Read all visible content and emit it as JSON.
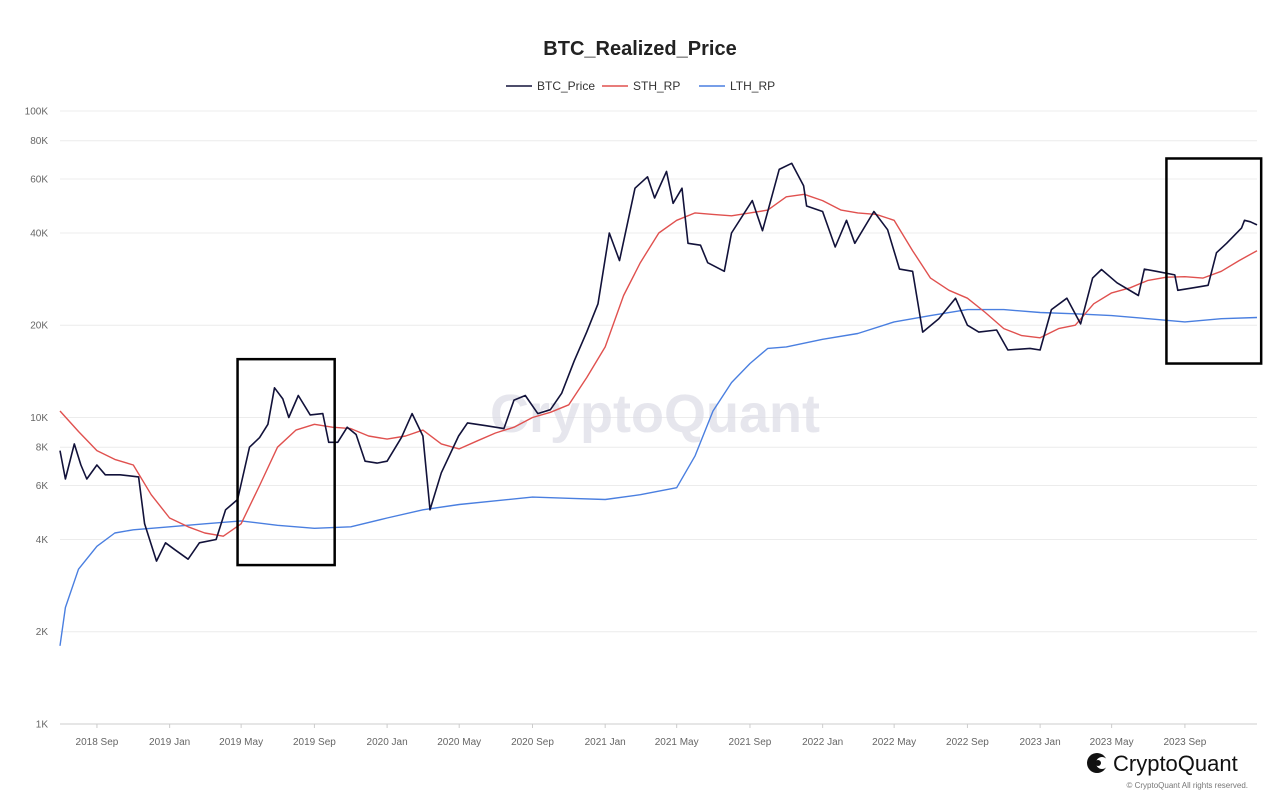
{
  "chart_data": {
    "type": "line",
    "title": "BTC_Realized_Price",
    "y_scale": "log",
    "ylim": [
      1000,
      100000
    ],
    "y_ticks": [
      {
        "v": 1000,
        "label": "1K"
      },
      {
        "v": 2000,
        "label": "2K"
      },
      {
        "v": 4000,
        "label": "4K"
      },
      {
        "v": 6000,
        "label": "6K"
      },
      {
        "v": 8000,
        "label": "8K"
      },
      {
        "v": 10000,
        "label": "10K"
      },
      {
        "v": 20000,
        "label": "20K"
      },
      {
        "v": 40000,
        "label": "40K"
      },
      {
        "v": 60000,
        "label": "60K"
      },
      {
        "v": 80000,
        "label": "80K"
      },
      {
        "v": 100000,
        "label": "100K"
      }
    ],
    "xlim": [
      "2018-07-01",
      "2023-12-31"
    ],
    "x_ticks": [
      {
        "date": "2018-09-01",
        "label": "2018 Sep"
      },
      {
        "date": "2019-01-01",
        "label": "2019 Jan"
      },
      {
        "date": "2019-05-01",
        "label": "2019 May"
      },
      {
        "date": "2019-09-01",
        "label": "2019 Sep"
      },
      {
        "date": "2020-01-01",
        "label": "2020 Jan"
      },
      {
        "date": "2020-05-01",
        "label": "2020 May"
      },
      {
        "date": "2020-09-01",
        "label": "2020 Sep"
      },
      {
        "date": "2021-01-01",
        "label": "2021 Jan"
      },
      {
        "date": "2021-05-01",
        "label": "2021 May"
      },
      {
        "date": "2021-09-01",
        "label": "2021 Sep"
      },
      {
        "date": "2022-01-01",
        "label": "2022 Jan"
      },
      {
        "date": "2022-05-01",
        "label": "2022 May"
      },
      {
        "date": "2022-09-01",
        "label": "2022 Sep"
      },
      {
        "date": "2023-01-01",
        "label": "2023 Jan"
      },
      {
        "date": "2023-05-01",
        "label": "2023 May"
      },
      {
        "date": "2023-09-01",
        "label": "2023 Sep"
      }
    ],
    "grid": true,
    "legend_position": "top-center",
    "series": [
      {
        "name": "BTC_Price",
        "color": "#12123a",
        "points": [
          [
            "2018-07-01",
            7800
          ],
          [
            "2018-07-10",
            6300
          ],
          [
            "2018-07-25",
            8200
          ],
          [
            "2018-08-05",
            7000
          ],
          [
            "2018-08-15",
            6300
          ],
          [
            "2018-09-01",
            7000
          ],
          [
            "2018-09-15",
            6500
          ],
          [
            "2018-10-10",
            6500
          ],
          [
            "2018-11-10",
            6400
          ],
          [
            "2018-11-20",
            4500
          ],
          [
            "2018-12-10",
            3400
          ],
          [
            "2018-12-25",
            3900
          ],
          [
            "2019-01-10",
            3700
          ],
          [
            "2019-02-01",
            3450
          ],
          [
            "2019-02-20",
            3900
          ],
          [
            "2019-03-20",
            4000
          ],
          [
            "2019-04-05",
            5000
          ],
          [
            "2019-04-25",
            5400
          ],
          [
            "2019-05-15",
            8000
          ],
          [
            "2019-06-01",
            8600
          ],
          [
            "2019-06-15",
            9500
          ],
          [
            "2019-06-26",
            12500
          ],
          [
            "2019-07-10",
            11500
          ],
          [
            "2019-07-20",
            10000
          ],
          [
            "2019-08-05",
            11800
          ],
          [
            "2019-08-25",
            10200
          ],
          [
            "2019-09-15",
            10300
          ],
          [
            "2019-09-25",
            8300
          ],
          [
            "2019-10-10",
            8300
          ],
          [
            "2019-10-26",
            9300
          ],
          [
            "2019-11-10",
            8800
          ],
          [
            "2019-11-25",
            7200
          ],
          [
            "2019-12-15",
            7100
          ],
          [
            "2020-01-01",
            7200
          ],
          [
            "2020-01-25",
            8600
          ],
          [
            "2020-02-12",
            10300
          ],
          [
            "2020-03-01",
            8700
          ],
          [
            "2020-03-13",
            5000
          ],
          [
            "2020-04-01",
            6600
          ],
          [
            "2020-04-30",
            8700
          ],
          [
            "2020-05-15",
            9600
          ],
          [
            "2020-06-15",
            9400
          ],
          [
            "2020-07-15",
            9200
          ],
          [
            "2020-08-01",
            11400
          ],
          [
            "2020-08-20",
            11800
          ],
          [
            "2020-09-10",
            10300
          ],
          [
            "2020-10-01",
            10600
          ],
          [
            "2020-10-20",
            12000
          ],
          [
            "2020-11-10",
            15300
          ],
          [
            "2020-12-01",
            19000
          ],
          [
            "2020-12-20",
            23500
          ],
          [
            "2021-01-08",
            40000
          ],
          [
            "2021-01-25",
            32500
          ],
          [
            "2021-02-20",
            56000
          ],
          [
            "2021-03-13",
            61000
          ],
          [
            "2021-03-25",
            52000
          ],
          [
            "2021-04-14",
            63500
          ],
          [
            "2021-04-25",
            50000
          ],
          [
            "2021-05-10",
            56000
          ],
          [
            "2021-05-20",
            37000
          ],
          [
            "2021-06-10",
            36500
          ],
          [
            "2021-06-22",
            32000
          ],
          [
            "2021-07-20",
            30000
          ],
          [
            "2021-08-01",
            40000
          ],
          [
            "2021-09-05",
            51000
          ],
          [
            "2021-09-22",
            40700
          ],
          [
            "2021-10-20",
            64500
          ],
          [
            "2021-11-10",
            67500
          ],
          [
            "2021-11-30",
            57000
          ],
          [
            "2021-12-05",
            49000
          ],
          [
            "2022-01-01",
            47000
          ],
          [
            "2022-01-22",
            36000
          ],
          [
            "2022-02-10",
            44000
          ],
          [
            "2022-02-24",
            37000
          ],
          [
            "2022-03-28",
            47000
          ],
          [
            "2022-04-20",
            41000
          ],
          [
            "2022-05-10",
            30500
          ],
          [
            "2022-06-01",
            30000
          ],
          [
            "2022-06-18",
            19000
          ],
          [
            "2022-07-15",
            21000
          ],
          [
            "2022-08-12",
            24500
          ],
          [
            "2022-09-01",
            20000
          ],
          [
            "2022-09-20",
            19000
          ],
          [
            "2022-10-20",
            19300
          ],
          [
            "2022-11-08",
            16600
          ],
          [
            "2022-12-15",
            16800
          ],
          [
            "2023-01-01",
            16600
          ],
          [
            "2023-01-20",
            22500
          ],
          [
            "2023-02-15",
            24500
          ],
          [
            "2023-03-10",
            20200
          ],
          [
            "2023-03-30",
            28500
          ],
          [
            "2023-04-14",
            30400
          ],
          [
            "2023-05-10",
            27500
          ],
          [
            "2023-06-15",
            25000
          ],
          [
            "2023-06-25",
            30500
          ],
          [
            "2023-07-15",
            30000
          ],
          [
            "2023-08-15",
            29200
          ],
          [
            "2023-08-20",
            26000
          ],
          [
            "2023-09-15",
            26500
          ],
          [
            "2023-10-10",
            27000
          ],
          [
            "2023-10-24",
            34500
          ],
          [
            "2023-11-10",
            37000
          ],
          [
            "2023-12-05",
            41500
          ],
          [
            "2023-12-10",
            44000
          ],
          [
            "2023-12-20",
            43500
          ],
          [
            "2023-12-31",
            42500
          ]
        ]
      },
      {
        "name": "STH_RP",
        "color": "#e0514f",
        "points": [
          [
            "2018-07-01",
            10500
          ],
          [
            "2018-08-01",
            9000
          ],
          [
            "2018-09-01",
            7800
          ],
          [
            "2018-10-01",
            7300
          ],
          [
            "2018-11-01",
            7000
          ],
          [
            "2018-12-01",
            5600
          ],
          [
            "2019-01-01",
            4700
          ],
          [
            "2019-02-01",
            4400
          ],
          [
            "2019-03-01",
            4200
          ],
          [
            "2019-04-01",
            4100
          ],
          [
            "2019-05-01",
            4500
          ],
          [
            "2019-06-01",
            6000
          ],
          [
            "2019-07-01",
            8000
          ],
          [
            "2019-08-01",
            9100
          ],
          [
            "2019-09-01",
            9500
          ],
          [
            "2019-10-01",
            9300
          ],
          [
            "2019-11-01",
            9200
          ],
          [
            "2019-12-01",
            8700
          ],
          [
            "2020-01-01",
            8500
          ],
          [
            "2020-02-01",
            8700
          ],
          [
            "2020-03-01",
            9100
          ],
          [
            "2020-04-01",
            8200
          ],
          [
            "2020-05-01",
            7900
          ],
          [
            "2020-06-01",
            8400
          ],
          [
            "2020-07-01",
            8900
          ],
          [
            "2020-08-01",
            9300
          ],
          [
            "2020-09-01",
            10000
          ],
          [
            "2020-10-01",
            10400
          ],
          [
            "2020-11-01",
            11000
          ],
          [
            "2020-12-01",
            13500
          ],
          [
            "2021-01-01",
            17000
          ],
          [
            "2021-02-01",
            25000
          ],
          [
            "2021-03-01",
            32000
          ],
          [
            "2021-04-01",
            40000
          ],
          [
            "2021-05-01",
            44000
          ],
          [
            "2021-06-01",
            46500
          ],
          [
            "2021-07-01",
            46000
          ],
          [
            "2021-08-01",
            45500
          ],
          [
            "2021-09-01",
            46500
          ],
          [
            "2021-10-01",
            47500
          ],
          [
            "2021-11-01",
            52500
          ],
          [
            "2021-12-01",
            53500
          ],
          [
            "2022-01-01",
            51000
          ],
          [
            "2022-02-01",
            47500
          ],
          [
            "2022-03-01",
            46500
          ],
          [
            "2022-04-01",
            46000
          ],
          [
            "2022-05-01",
            44000
          ],
          [
            "2022-06-01",
            35000
          ],
          [
            "2022-07-01",
            28500
          ],
          [
            "2022-08-01",
            26000
          ],
          [
            "2022-09-01",
            24500
          ],
          [
            "2022-10-01",
            22000
          ],
          [
            "2022-11-01",
            19500
          ],
          [
            "2022-12-01",
            18500
          ],
          [
            "2023-01-01",
            18200
          ],
          [
            "2023-02-01",
            19500
          ],
          [
            "2023-03-01",
            20000
          ],
          [
            "2023-04-01",
            23500
          ],
          [
            "2023-05-01",
            25500
          ],
          [
            "2023-06-01",
            26500
          ],
          [
            "2023-07-01",
            28000
          ],
          [
            "2023-08-01",
            28700
          ],
          [
            "2023-09-01",
            28800
          ],
          [
            "2023-10-01",
            28500
          ],
          [
            "2023-11-01",
            30000
          ],
          [
            "2023-12-01",
            32500
          ],
          [
            "2023-12-31",
            35000
          ]
        ]
      },
      {
        "name": "LTH_RP",
        "color": "#4a7fe0",
        "points": [
          [
            "2018-07-01",
            1800
          ],
          [
            "2018-07-10",
            2400
          ],
          [
            "2018-08-01",
            3200
          ],
          [
            "2018-09-01",
            3800
          ],
          [
            "2018-10-01",
            4200
          ],
          [
            "2018-11-01",
            4300
          ],
          [
            "2019-01-01",
            4400
          ],
          [
            "2019-03-01",
            4500
          ],
          [
            "2019-05-01",
            4600
          ],
          [
            "2019-07-01",
            4450
          ],
          [
            "2019-09-01",
            4350
          ],
          [
            "2019-11-01",
            4400
          ],
          [
            "2020-01-01",
            4700
          ],
          [
            "2020-03-01",
            5000
          ],
          [
            "2020-05-01",
            5200
          ],
          [
            "2020-07-01",
            5350
          ],
          [
            "2020-09-01",
            5500
          ],
          [
            "2020-11-01",
            5450
          ],
          [
            "2021-01-01",
            5400
          ],
          [
            "2021-03-01",
            5600
          ],
          [
            "2021-05-01",
            5900
          ],
          [
            "2021-06-01",
            7500
          ],
          [
            "2021-07-01",
            10500
          ],
          [
            "2021-08-01",
            13000
          ],
          [
            "2021-09-01",
            15000
          ],
          [
            "2021-10-01",
            16800
          ],
          [
            "2021-11-01",
            17000
          ],
          [
            "2022-01-01",
            18000
          ],
          [
            "2022-03-01",
            18800
          ],
          [
            "2022-05-01",
            20500
          ],
          [
            "2022-07-01",
            21500
          ],
          [
            "2022-09-01",
            22500
          ],
          [
            "2022-11-01",
            22500
          ],
          [
            "2023-01-01",
            22000
          ],
          [
            "2023-03-01",
            21800
          ],
          [
            "2023-05-01",
            21500
          ],
          [
            "2023-07-01",
            21000
          ],
          [
            "2023-09-01",
            20500
          ],
          [
            "2023-11-01",
            21000
          ],
          [
            "2023-12-31",
            21200
          ]
        ]
      }
    ],
    "annotations": [
      {
        "type": "box",
        "x0": "2019-04-25",
        "x1": "2019-10-05",
        "y0": 3300,
        "y1": 15500
      },
      {
        "type": "box",
        "x0": "2023-08-01",
        "x1": "2024-01-07",
        "y0": 15000,
        "y1": 70000
      }
    ]
  },
  "watermark": "CryptoQuant",
  "brand": {
    "name": "CryptoQuant",
    "copyright": "© CryptoQuant All rights reserved."
  }
}
